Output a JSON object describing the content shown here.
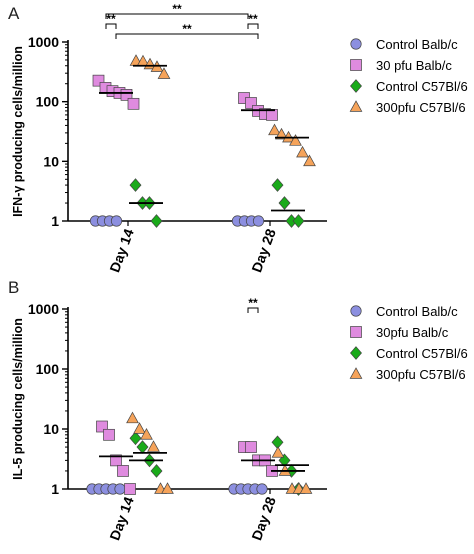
{
  "chart_data": [
    {
      "panel_label": "A",
      "type": "scatter",
      "title": "",
      "ylabel": "IFN-γ producing cells/million",
      "xlabel": "",
      "yscale": "log",
      "ylim": [
        1,
        1000
      ],
      "yticks": [
        "1",
        "10",
        "100",
        "1000"
      ],
      "categories": [
        "Day 14",
        "Day 28"
      ],
      "legend_position": "right",
      "series": [
        {
          "name": "Control Balb/c",
          "marker": "circle",
          "color": "#8c8fe0",
          "points": [
            [
              0,
              [
                1,
                1,
                1,
                1
              ]
            ],
            [
              1,
              [
                1,
                1,
                1,
                1
              ]
            ]
          ]
        },
        {
          "name": "30 pfu Balb/c",
          "marker": "square",
          "color": "#df8bdf",
          "points": [
            [
              0,
              [
                225,
                170,
                150,
                140,
                130,
                92
              ]
            ],
            [
              1,
              [
                115,
                95,
                70,
                62,
                60
              ]
            ]
          ]
        },
        {
          "name": "Control C57Bl/6",
          "marker": "diamond",
          "color": "#1aaa1a",
          "points": [
            [
              0,
              [
                4,
                2,
                2,
                1
              ]
            ],
            [
              1,
              [
                4,
                2,
                1,
                1
              ]
            ]
          ]
        },
        {
          "name": "300pfu C57Bl/6",
          "marker": "triangle",
          "color": "#f5a35a",
          "points": [
            [
              0,
              [
                480,
                470,
                420,
                380,
                290
              ]
            ],
            [
              1,
              [
                33,
                28,
                25,
                22,
                14,
                10
              ]
            ]
          ]
        }
      ],
      "medians": [
        {
          "series": 1,
          "cat": 0,
          "value": 140
        },
        {
          "series": 3,
          "cat": 0,
          "value": 400
        },
        {
          "series": 2,
          "cat": 0,
          "value": 2
        },
        {
          "series": 1,
          "cat": 1,
          "value": 72
        },
        {
          "series": 3,
          "cat": 1,
          "value": 25
        },
        {
          "series": 2,
          "cat": 1,
          "value": 1.5
        }
      ],
      "significance": [
        {
          "from": [
            0,
            0
          ],
          "to": [
            0,
            1
          ],
          "label": "**"
        },
        {
          "from": [
            0,
            0
          ],
          "to": [
            1,
            0
          ],
          "label": "**"
        },
        {
          "from": [
            0,
            1
          ],
          "to": [
            1,
            1
          ],
          "label": "**"
        },
        {
          "from": [
            1,
            0
          ],
          "to": [
            1,
            1
          ],
          "label": "**"
        }
      ]
    },
    {
      "panel_label": "B",
      "type": "scatter",
      "title": "",
      "ylabel": "IL-5 producing cells/million",
      "xlabel": "",
      "yscale": "log",
      "ylim": [
        1,
        1000
      ],
      "yticks": [
        "1",
        "10",
        "100",
        "1000"
      ],
      "categories": [
        "Day 14",
        "Day 28"
      ],
      "legend_position": "right",
      "series": [
        {
          "name": "Control Balb/c",
          "marker": "circle",
          "color": "#8c8fe0",
          "points": [
            [
              0,
              [
                1,
                1,
                1,
                1,
                1
              ]
            ],
            [
              1,
              [
                1,
                1,
                1,
                1,
                1
              ]
            ]
          ]
        },
        {
          "name": "30pfu Balb/c",
          "marker": "square",
          "color": "#df8bdf",
          "points": [
            [
              0,
              [
                11,
                8,
                3,
                2,
                1
              ]
            ],
            [
              1,
              [
                5,
                5,
                3,
                3,
                2
              ]
            ]
          ]
        },
        {
          "name": "Control C57Bl/6",
          "marker": "diamond",
          "color": "#1aaa1a",
          "points": [
            [
              0,
              [
                7,
                5,
                3,
                2
              ]
            ],
            [
              1,
              [
                6,
                3,
                2,
                1
              ]
            ]
          ]
        },
        {
          "name": "300pfu C57Bl/6",
          "marker": "triangle",
          "color": "#f5a35a",
          "points": [
            [
              0,
              [
                15,
                10,
                8,
                5,
                1,
                1
              ]
            ],
            [
              1,
              [
                4,
                2,
                1,
                1,
                1
              ]
            ]
          ]
        }
      ],
      "medians": [
        {
          "series": 1,
          "cat": 0,
          "value": 3.5
        },
        {
          "series": 3,
          "cat": 0,
          "value": 4
        },
        {
          "series": 2,
          "cat": 0,
          "value": 3
        },
        {
          "series": 1,
          "cat": 1,
          "value": 3
        },
        {
          "series": 3,
          "cat": 1,
          "value": 2.5
        },
        {
          "series": 2,
          "cat": 1,
          "value": 2
        }
      ],
      "significance": [
        {
          "from": [
            1,
            0
          ],
          "to": [
            1,
            1
          ],
          "label": "**"
        }
      ]
    }
  ]
}
